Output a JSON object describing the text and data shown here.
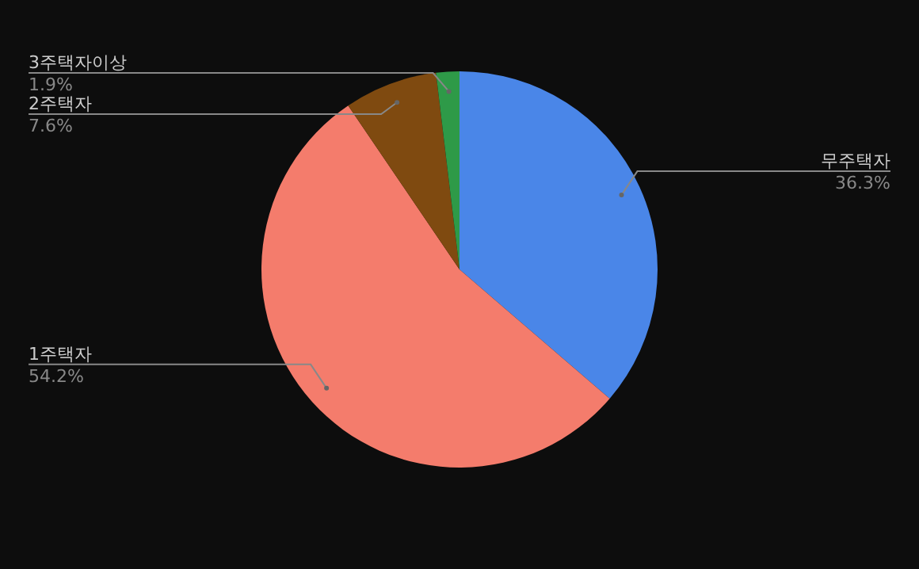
{
  "chart_data": {
    "type": "pie",
    "categories": [
      "무주택자",
      "1주택자",
      "2주택자",
      "3주택자이상"
    ],
    "values": [
      36.3,
      54.2,
      7.6,
      1.9
    ],
    "value_labels": [
      "36.3%",
      "54.2%",
      "7.6%",
      "1.9%"
    ],
    "colors": [
      "#4a86e8",
      "#f47c6c",
      "#7f4a10",
      "#2e9a48"
    ]
  }
}
